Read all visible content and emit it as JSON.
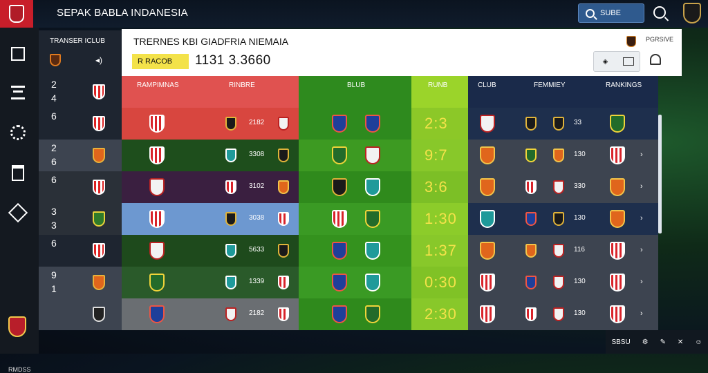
{
  "app": {
    "title": "SEPAK BABLA INDANESIA",
    "search_label": "SUBE"
  },
  "side": {
    "header": "TRANSER ICLUB",
    "rows": [
      {
        "n1": "2",
        "n2": "4",
        "crest": "rw"
      },
      {
        "n1": "6",
        "n2": "",
        "crest": "rw"
      },
      {
        "n1": "2",
        "n2": "6",
        "crest": "or"
      },
      {
        "n1": "6",
        "n2": "",
        "crest": "rw"
      },
      {
        "n1": "3",
        "n2": "3",
        "crest": "gr"
      },
      {
        "n1": "6",
        "n2": "",
        "crest": "rw"
      },
      {
        "n1": "9",
        "n2": "1",
        "crest": "or"
      },
      {
        "n1": "",
        "n2": "",
        "crest": "bk"
      }
    ],
    "footer": "RMDSS"
  },
  "panel": {
    "title": "TRERNES KBI GIADFRIA NIEMAIA",
    "link": "PGRSIVE",
    "tag": "R RACOB",
    "score": "1131  3.3660"
  },
  "table": {
    "headers": [
      "RAMPIMNAS",
      "RINBRE",
      "BLUB",
      "RUNB",
      "CLUB",
      "FEMMIEY",
      "RANKINGS"
    ],
    "colors": {
      "col1": "#e05250",
      "col2": "#e05250",
      "col3": "#2e8a1e",
      "col4": "#9bd42a",
      "col5": "#1a2a4a"
    },
    "rows": [
      {
        "num": "2182",
        "score": "2:3",
        "n2": "33",
        "bg1": "#d8463f",
        "bg3": "#2e8a1e",
        "bg4": "#8cc828",
        "bg5": "#1e2f4d",
        "c": [
          "rw",
          "bk",
          "wh",
          "bl",
          "bl",
          "wh",
          "bk",
          "bk",
          "gr"
        ]
      },
      {
        "num": "3308",
        "score": "9:7",
        "n2": "130",
        "bg1": "#1e4e1c",
        "bg3": "#3d9a22",
        "bg4": "#88c82a",
        "bg5": "#3d4450",
        "c": [
          "rw",
          "tl",
          "bk",
          "gr",
          "wh",
          "or",
          "gr",
          "or",
          "rw"
        ]
      },
      {
        "num": "3102",
        "score": "3:6",
        "n2": "330",
        "bg1": "#3a1f40",
        "bg3": "#2f8a1c",
        "bg4": "#7cbf26",
        "bg5": "#3d4450",
        "c": [
          "wh",
          "rw",
          "or",
          "bk",
          "tl",
          "or",
          "rw",
          "wh",
          "or"
        ]
      },
      {
        "num": "3038",
        "score": "1:30",
        "n2": "130",
        "bg1": "#6d98d0",
        "bg3": "#3a9a24",
        "bg4": "#8ccc2a",
        "bg5": "#1e2f4d",
        "c": [
          "rw",
          "bk",
          "rw",
          "rw",
          "gr",
          "tl",
          "bl",
          "bk",
          "or"
        ]
      },
      {
        "num": "5633",
        "score": "1:37",
        "n2": "116",
        "bg1": "#1e4a1c",
        "bg3": "#34921e",
        "bg4": "#88c82a",
        "bg5": "#3d4450",
        "c": [
          "wh",
          "tl",
          "bk",
          "bl",
          "tl",
          "or",
          "or",
          "wh",
          "rw"
        ]
      },
      {
        "num": "1339",
        "score": "0:30",
        "n2": "130",
        "bg1": "#2a5a2a",
        "bg3": "#3a9a24",
        "bg4": "#80c226",
        "bg5": "#3d4450",
        "c": [
          "gr",
          "tl",
          "rw",
          "bl",
          "tl",
          "rw",
          "bl",
          "wh",
          "rw"
        ]
      },
      {
        "num": "2182",
        "score": "2:30",
        "n2": "130",
        "bg1": "#6a6e72",
        "bg3": "#2f8a1c",
        "bg4": "#88c82a",
        "bg5": "#3d4450",
        "c": [
          "bl",
          "wh",
          "rw",
          "bl",
          "gr",
          "rw",
          "rw",
          "wh",
          "rw"
        ]
      }
    ]
  },
  "footer_bar": {
    "left": "SBSU",
    "icons": [
      "gear-icon",
      "tool-icon",
      "close-icon",
      "user-icon"
    ]
  }
}
